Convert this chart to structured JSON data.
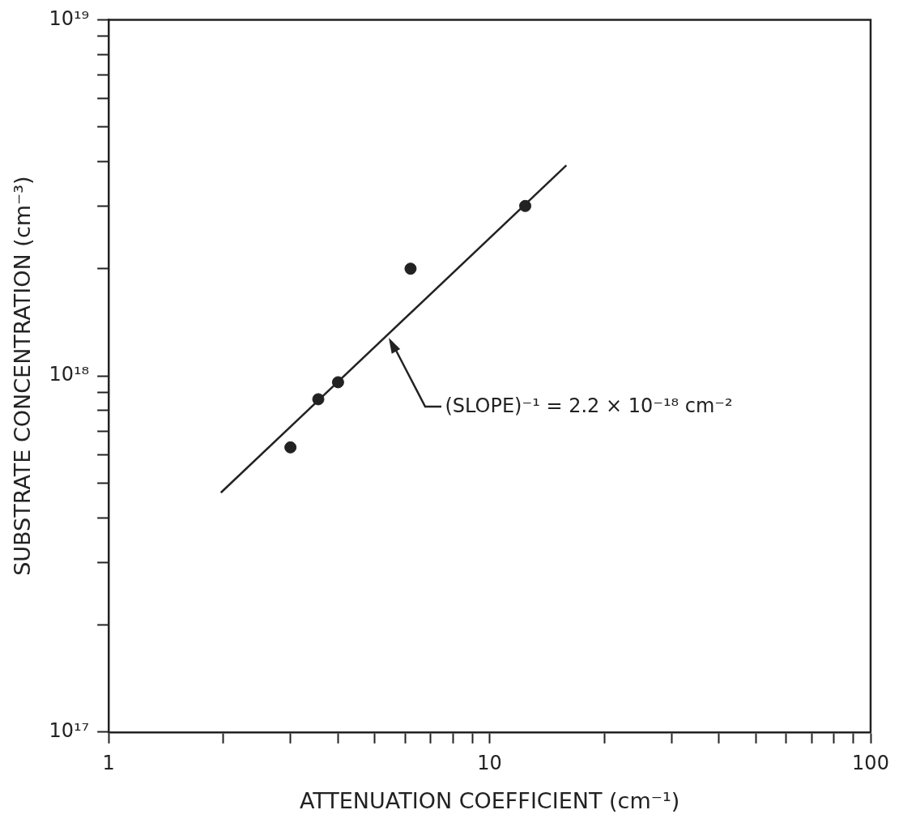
{
  "chart_data": {
    "type": "scatter",
    "xlabel": "ATTENUATION COEFFICIENT (cm⁻¹)",
    "ylabel": "SUBSTRATE CONCENTRATION (cm⁻³)",
    "log": "xy",
    "marker": "circle",
    "legend": false,
    "grid": false,
    "xlim": [
      1,
      100
    ],
    "ylim": [
      1e+17,
      1e+19
    ],
    "xticks": [
      1,
      {
        "value": 2,
        "label": null
      },
      {
        "value": 3,
        "label": null
      },
      {
        "value": 4,
        "label": null
      },
      {
        "value": 5,
        "label": null
      },
      {
        "value": 6,
        "label": null
      },
      {
        "value": 7,
        "label": null
      },
      {
        "value": 8,
        "label": null
      },
      {
        "value": 9,
        "label": null
      },
      10,
      {
        "value": 20,
        "label": null
      },
      {
        "value": 30,
        "label": null
      },
      {
        "value": 40,
        "label": null
      },
      {
        "value": 50,
        "label": null
      },
      {
        "value": 60,
        "label": null
      },
      {
        "value": 70,
        "label": null
      },
      {
        "value": 80,
        "label": null
      },
      {
        "value": 90,
        "label": null
      },
      100
    ],
    "yticks": [
      {
        "value": 1e+17,
        "label": "10¹⁷"
      },
      {
        "value": 2e+17,
        "label": null
      },
      {
        "value": 3e+17,
        "label": null
      },
      {
        "value": 4e+17,
        "label": null
      },
      {
        "value": 5e+17,
        "label": null
      },
      {
        "value": 6e+17,
        "label": null
      },
      {
        "value": 7e+17,
        "label": null
      },
      {
        "value": 8e+17,
        "label": null
      },
      {
        "value": 9e+17,
        "label": null
      },
      {
        "value": 1e+18,
        "label": "10¹⁸"
      },
      {
        "value": 2e+18,
        "label": null
      },
      {
        "value": 3e+18,
        "label": null
      },
      {
        "value": 4e+18,
        "label": null
      },
      {
        "value": 5e+18,
        "label": null
      },
      {
        "value": 6e+18,
        "label": null
      },
      {
        "value": 7e+18,
        "label": null
      },
      {
        "value": 8e+18,
        "label": null
      },
      {
        "value": 9e+18,
        "label": null
      },
      {
        "value": 1e+19,
        "label": "10¹⁹"
      }
    ],
    "series": [
      {
        "type": "scatter",
        "color": "#222222",
        "x": [
          3.0,
          3.55,
          4.0,
          6.2,
          12.4
        ],
        "values": [
          6.3e+17,
          8.6e+17,
          9.6e+17,
          2e+18,
          3e+18
        ]
      },
      {
        "type": "line",
        "color": "#222222",
        "marker": "none",
        "x": [
          1.97,
          15.9
        ],
        "values": [
          4.7e+17,
          3.9e+18
        ]
      }
    ],
    "annotations": [
      "(SLOPE)⁻¹ = 2.2 × 10⁻¹⁸ cm⁻²"
    ]
  }
}
